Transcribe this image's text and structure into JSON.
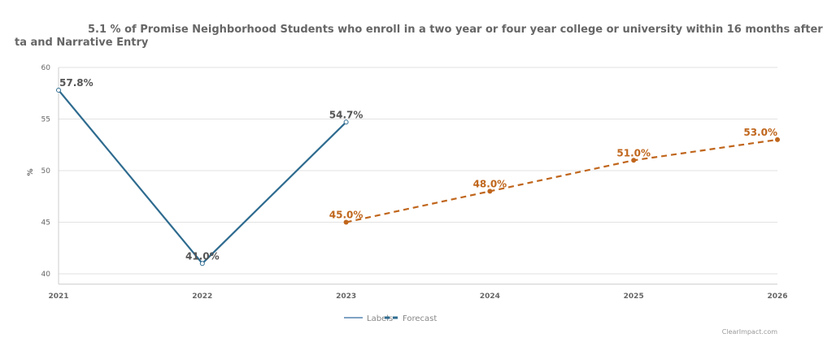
{
  "chart_data": {
    "type": "line",
    "title": "5.1 % of Promise Neighborhood Students who enroll in a two year or four year college or university within 16 months after",
    "subtitle": "ta and Narrative Entry",
    "ylabel": "%",
    "xlabel": "",
    "ylim": [
      39,
      60
    ],
    "yticks": [
      40,
      45,
      50,
      55,
      60
    ],
    "xticks": [
      "2021",
      "2022",
      "2023",
      "2024",
      "2025",
      "2026"
    ],
    "grid": true,
    "legend_position": "bottom-center",
    "series": [
      {
        "name": "Labels",
        "color": "#2e6b8f",
        "dashed": false,
        "x": [
          2021,
          2022,
          2023
        ],
        "values": [
          57.8,
          41.0,
          54.7
        ],
        "labels": [
          "57.8%",
          "41.0%",
          "54.7%"
        ]
      },
      {
        "name": "Forecast",
        "color": "#c0661c",
        "dashed": true,
        "x": [
          2023,
          2024,
          2025,
          2026
        ],
        "values": [
          45.0,
          48.0,
          51.0,
          53.0
        ],
        "labels": [
          "45.0%",
          "48.0%",
          "51.0%",
          "53.0%"
        ]
      }
    ],
    "credit": "ClearImpact.com"
  }
}
